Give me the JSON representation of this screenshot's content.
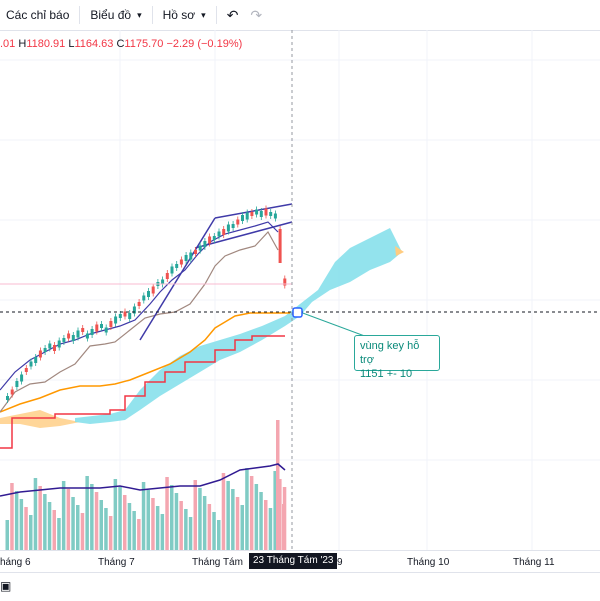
{
  "toolbar": {
    "indicators_label": "Các chỉ báo",
    "chart_label": "Biểu đồ",
    "profile_label": "Hồ sơ",
    "undo_icon": "undo-icon",
    "redo_icon": "redo-icon"
  },
  "ohlc": {
    "open_fragment": ".01",
    "high_key": "H",
    "high": "1180.91",
    "low_key": "L",
    "low": "1164.63",
    "close_key": "C",
    "close": "1175.70",
    "change": "−2.29 (−0.19%)"
  },
  "colors": {
    "up": "#26a69a",
    "down": "#ef5350",
    "cloud": "#80deea",
    "kijun": "#f23645",
    "tenkan": "#ff9800",
    "ma": "#311b92",
    "trend": "#3f3aa8"
  },
  "annotation": {
    "line1": "vùng key hỗ trợ",
    "line2": "1151 +- 10"
  },
  "time_axis": {
    "ticks": [
      "háng 6",
      "Tháng 7",
      "Tháng Tám",
      "9",
      "Tháng 10",
      "Tháng 11"
    ],
    "current_date": "23 Tháng Tám '23"
  },
  "bottom": {
    "icon": "calendar-range-icon"
  }
}
